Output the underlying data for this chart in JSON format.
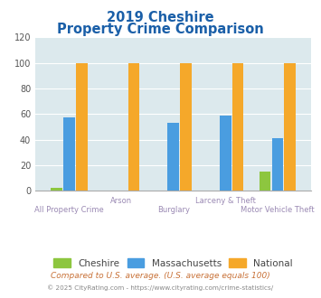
{
  "title_line1": "2019 Cheshire",
  "title_line2": "Property Crime Comparison",
  "categories": [
    "All Property Crime",
    "Arson",
    "Burglary",
    "Larceny & Theft",
    "Motor Vehicle Theft"
  ],
  "cheshire": [
    2,
    0,
    0,
    0,
    15
  ],
  "massachusetts": [
    57,
    0,
    53,
    59,
    41
  ],
  "national": [
    100,
    100,
    100,
    100,
    100
  ],
  "colors": {
    "cheshire": "#8dc63f",
    "massachusetts": "#4a9de0",
    "national": "#f5a82a"
  },
  "ylim": [
    0,
    120
  ],
  "yticks": [
    0,
    20,
    40,
    60,
    80,
    100,
    120
  ],
  "plot_bg": "#dce9ed",
  "title_color": "#1a5fa8",
  "xlabel_color": "#9b8ab4",
  "legend_label_color": "#444444",
  "footer_text": "Compared to U.S. average. (U.S. average equals 100)",
  "footer2_text": "© 2025 CityRating.com - https://www.cityrating.com/crime-statistics/",
  "footer_color": "#c87137",
  "footer2_color": "#888888",
  "bar_width": 0.22,
  "bar_gap": 0.02
}
